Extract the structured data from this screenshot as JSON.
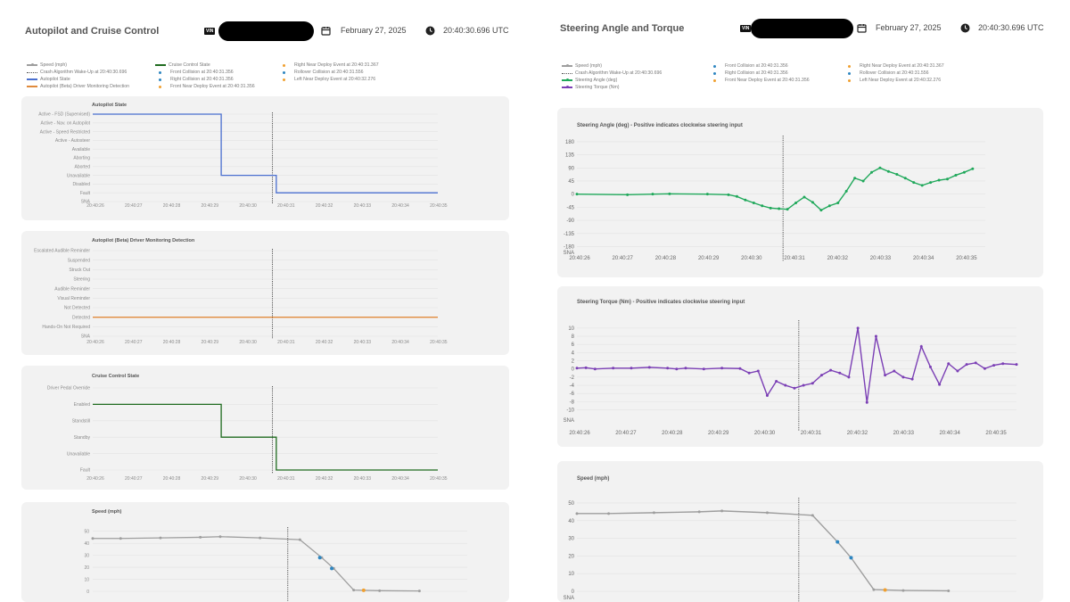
{
  "left": {
    "title": "Autopilot and Cruise Control",
    "vin_label": "VIN",
    "date": "February 27, 2025",
    "time": "20:40:30.696 UTC",
    "legend": [
      {
        "label": "Speed (mph)",
        "color": "#9e9e9e",
        "kind": "line-dot"
      },
      {
        "label": "Crash Algorithm Wake-Up at 20:40:30.696",
        "color": "#555555",
        "kind": "dotted"
      },
      {
        "label": "Autopilot State",
        "color": "#4a6fcf",
        "kind": "line"
      },
      {
        "label": "Autopilot (Beta) Driver Monitoring Detection",
        "color": "#e08a3c",
        "kind": "line"
      },
      {
        "label": "Cruise Control State",
        "color": "#1f6b1f",
        "kind": "line"
      },
      {
        "label": "Front Collision at 20:40:31.356",
        "color": "#2e86c1",
        "kind": "dot"
      },
      {
        "label": "Right Collision at 20:40:31.356",
        "color": "#2e86c1",
        "kind": "dot"
      },
      {
        "label": "Front Near Deploy Event at 20:40:31.356",
        "color": "#f0a030",
        "kind": "dot"
      },
      {
        "label": "Right Near Deploy Event at 20:40:31.367",
        "color": "#f0a030",
        "kind": "dot"
      },
      {
        "label": "Rollover Collision at 20:40:31.556",
        "color": "#2e86c1",
        "kind": "dot"
      },
      {
        "label": "Left Near Deploy Event at 20:40:32.276",
        "color": "#f0a030",
        "kind": "dot"
      }
    ]
  },
  "right": {
    "title": "Steering Angle and Torque",
    "vin_label": "VIN",
    "date": "February 27, 2025",
    "time": "20:40:30.696 UTC",
    "legend": [
      {
        "label": "Speed (mph)",
        "color": "#9e9e9e",
        "kind": "line-dot"
      },
      {
        "label": "Crash Algorithm Wake-Up at 20:40:30.696",
        "color": "#555555",
        "kind": "dotted"
      },
      {
        "label": "Steering Angle (deg)",
        "color": "#1fa85a",
        "kind": "line-dot"
      },
      {
        "label": "Steering Torque (Nm)",
        "color": "#7b3fb5",
        "kind": "line-dot"
      },
      {
        "label": "Front Collision at 20:40:31.356",
        "color": "#2e86c1",
        "kind": "dot"
      },
      {
        "label": "Right Collision at 20:40:31.356",
        "color": "#2e86c1",
        "kind": "dot"
      },
      {
        "label": "Front Near Deploy Event at 20:40:31.356",
        "color": "#f0a030",
        "kind": "dot"
      },
      {
        "label": "Right Near Deploy Event at 20:40:31.367",
        "color": "#f0a030",
        "kind": "dot"
      },
      {
        "label": "Rollover Collision at 20:40:31.556",
        "color": "#2e86c1",
        "kind": "dot"
      },
      {
        "label": "Left Near Deploy Event at 20:40:32.276",
        "color": "#f0a030",
        "kind": "dot"
      }
    ]
  },
  "chart_data": [
    {
      "id": "autopilot-state",
      "type": "line",
      "title": "Autopilot State",
      "categorical_y": true,
      "y_categories": [
        "SNA",
        "Fault",
        "Disabled",
        "Unavailable",
        "Aborted",
        "Aborting",
        "Available",
        "Active - Autosteer",
        "Active - Speed Restricted",
        "Active - Nav. on Autopilot",
        "Active - FSD (Supervised)"
      ],
      "x_ticks": [
        "20:40:26",
        "20:40:27",
        "20:40:28",
        "20:40:29",
        "20:40:30",
        "20:40:31",
        "20:40:32",
        "20:40:33",
        "20:40:34",
        "20:40:35"
      ],
      "x_range": [
        25.8,
        35.2
      ],
      "wakeup": 30.696,
      "series": [
        {
          "color": "#4a6fcf",
          "points": [
            [
              25.8,
              10
            ],
            [
              29.3,
              10
            ],
            [
              29.3,
              3
            ],
            [
              30.8,
              3
            ],
            [
              30.8,
              1
            ],
            [
              35.2,
              1
            ]
          ]
        }
      ]
    },
    {
      "id": "driver-monitoring",
      "type": "line",
      "title": "Autopilot (Beta) Driver Monitoring Detection",
      "categorical_y": true,
      "y_categories": [
        "SNA",
        "Hands-On Not Required",
        "Detected",
        "Not Detected",
        "Visual Reminder",
        "Audible Reminder",
        "Steering",
        "Struck Out",
        "Suspended",
        "Escalated Audible Reminder"
      ],
      "x_ticks": [
        "20:40:26",
        "20:40:27",
        "20:40:28",
        "20:40:29",
        "20:40:30",
        "20:40:31",
        "20:40:32",
        "20:40:33",
        "20:40:34",
        "20:40:35"
      ],
      "x_range": [
        25.8,
        35.2
      ],
      "wakeup": 30.696,
      "series": [
        {
          "color": "#e08a3c",
          "points": [
            [
              25.8,
              2
            ],
            [
              35.2,
              2
            ]
          ]
        }
      ]
    },
    {
      "id": "cruise-control",
      "type": "line",
      "title": "Cruise Control State",
      "categorical_y": true,
      "y_categories": [
        "Fault",
        "Unavailable",
        "Standby",
        "Standstill",
        "Enabled",
        "Driver Pedal Override"
      ],
      "x_ticks": [
        "20:40:26",
        "20:40:27",
        "20:40:28",
        "20:40:29",
        "20:40:30",
        "20:40:31",
        "20:40:32",
        "20:40:33",
        "20:40:34",
        "20:40:35"
      ],
      "x_range": [
        25.8,
        35.2
      ],
      "wakeup": 30.696,
      "series": [
        {
          "color": "#1f6b1f",
          "points": [
            [
              25.8,
              4
            ],
            [
              29.3,
              4
            ],
            [
              29.3,
              2
            ],
            [
              30.8,
              2
            ],
            [
              30.8,
              0
            ],
            [
              35.2,
              0
            ]
          ]
        }
      ]
    },
    {
      "id": "speed-left",
      "type": "line",
      "title": "Speed (mph)",
      "y_ticks": [
        0,
        10,
        20,
        30,
        40,
        50
      ],
      "ylim": [
        0,
        52
      ],
      "x_range": [
        25.8,
        35.2
      ],
      "wakeup": 30.696,
      "series": [
        {
          "color": "#9e9e9e",
          "dots": true,
          "points": [
            [
              25.8,
              44
            ],
            [
              26.5,
              44
            ],
            [
              27.5,
              44.5
            ],
            [
              28.5,
              45
            ],
            [
              29,
              45.5
            ],
            [
              30,
              44.5
            ],
            [
              31,
              43
            ],
            [
              31.55,
              28
            ],
            [
              31.85,
              19
            ],
            [
              32.35,
              1
            ],
            [
              33.0,
              0.5
            ],
            [
              34.0,
              0.3
            ]
          ]
        }
      ],
      "events": [
        {
          "x": 31.5,
          "y": 28,
          "color": "#2e86c1"
        },
        {
          "x": 31.8,
          "y": 19,
          "color": "#2e86c1"
        },
        {
          "x": 32.6,
          "y": 0.8,
          "color": "#f0a030"
        }
      ]
    },
    {
      "id": "steering-angle",
      "type": "line",
      "title": "Steering Angle (deg) - Positive indicates clockwise steering input",
      "y_ticks": [
        180,
        135,
        90,
        45,
        0,
        -45,
        -90,
        -135,
        -180
      ],
      "y_tick_labels": [
        "180",
        "135",
        "90",
        "45",
        "0",
        "-45",
        "-90",
        "-135",
        "-180"
      ],
      "sna_label": "SNA",
      "ylim": [
        -200,
        195
      ],
      "x_ticks": [
        "20:40:26",
        "20:40:27",
        "20:40:28",
        "20:40:29",
        "20:40:30",
        "20:40:31",
        "20:40:32",
        "20:40:33",
        "20:40:34",
        "20:40:35"
      ],
      "x_range": [
        25.8,
        35.5
      ],
      "wakeup": 30.696,
      "series": [
        {
          "color": "#1fa85a",
          "dots": true,
          "points": [
            [
              25.8,
              0
            ],
            [
              27.0,
              -2
            ],
            [
              27.6,
              0
            ],
            [
              28.0,
              1
            ],
            [
              28.9,
              0
            ],
            [
              29.4,
              -2
            ],
            [
              29.6,
              -8
            ],
            [
              29.8,
              -20
            ],
            [
              30.0,
              -30
            ],
            [
              30.2,
              -40
            ],
            [
              30.4,
              -48
            ],
            [
              30.6,
              -50
            ],
            [
              30.8,
              -52
            ],
            [
              31.0,
              -30
            ],
            [
              31.2,
              -10
            ],
            [
              31.4,
              -28
            ],
            [
              31.6,
              -55
            ],
            [
              31.8,
              -40
            ],
            [
              32.0,
              -30
            ],
            [
              32.2,
              10
            ],
            [
              32.4,
              55
            ],
            [
              32.6,
              45
            ],
            [
              32.8,
              75
            ],
            [
              33.0,
              90
            ],
            [
              33.2,
              78
            ],
            [
              33.4,
              68
            ],
            [
              33.6,
              55
            ],
            [
              33.8,
              40
            ],
            [
              34.0,
              30
            ],
            [
              34.2,
              40
            ],
            [
              34.4,
              48
            ],
            [
              34.6,
              52
            ],
            [
              34.8,
              65
            ],
            [
              35.0,
              75
            ],
            [
              35.2,
              87
            ]
          ]
        }
      ]
    },
    {
      "id": "steering-torque",
      "type": "line",
      "title": "Steering Torque (Nm) - Positive indicates clockwise steering input",
      "y_ticks": [
        10,
        8,
        6,
        4,
        2,
        0,
        -2,
        -4,
        -6,
        -8,
        -10
      ],
      "y_tick_labels": [
        "10",
        "8",
        "6",
        "4",
        "2",
        "0",
        "-2",
        "-4",
        "-6",
        "-8",
        "-10"
      ],
      "sna_label": "SNA",
      "ylim": [
        -12.5,
        11.5
      ],
      "x_ticks": [
        "20:40:26",
        "20:40:27",
        "20:40:28",
        "20:40:29",
        "20:40:30",
        "20:40:31",
        "20:40:32",
        "20:40:33",
        "20:40:34",
        "20:40:35"
      ],
      "x_range": [
        25.8,
        35.5
      ],
      "wakeup": 30.696,
      "series": [
        {
          "color": "#7b3fb5",
          "dots": true,
          "points": [
            [
              25.8,
              0.2
            ],
            [
              26.0,
              0.3
            ],
            [
              26.2,
              0
            ],
            [
              26.6,
              0.2
            ],
            [
              27.0,
              0.2
            ],
            [
              27.4,
              0.4
            ],
            [
              27.8,
              0.2
            ],
            [
              28.0,
              0
            ],
            [
              28.2,
              0.2
            ],
            [
              28.6,
              0
            ],
            [
              29.0,
              0.2
            ],
            [
              29.4,
              0.1
            ],
            [
              29.6,
              -1
            ],
            [
              29.8,
              -0.5
            ],
            [
              30.0,
              -6.5
            ],
            [
              30.2,
              -3
            ],
            [
              30.4,
              -4
            ],
            [
              30.6,
              -4.7
            ],
            [
              30.8,
              -4
            ],
            [
              31.0,
              -3.5
            ],
            [
              31.2,
              -1.5
            ],
            [
              31.4,
              -0.3
            ],
            [
              31.6,
              -1
            ],
            [
              31.8,
              -2
            ],
            [
              32.0,
              10
            ],
            [
              32.2,
              -8.2
            ],
            [
              32.4,
              8
            ],
            [
              32.6,
              -1.5
            ],
            [
              32.8,
              -0.5
            ],
            [
              33.0,
              -2
            ],
            [
              33.2,
              -2.5
            ],
            [
              33.4,
              5.5
            ],
            [
              33.6,
              0.5
            ],
            [
              33.8,
              -3.8
            ],
            [
              34.0,
              1.3
            ],
            [
              34.2,
              -0.5
            ],
            [
              34.4,
              1.1
            ],
            [
              34.6,
              1.5
            ],
            [
              34.8,
              0.1
            ],
            [
              35.0,
              0.9
            ],
            [
              35.2,
              1.3
            ],
            [
              35.5,
              1.1
            ]
          ]
        }
      ]
    },
    {
      "id": "speed-right",
      "type": "line",
      "title": "Speed (mph)",
      "y_ticks": [
        50,
        40,
        30,
        20,
        10,
        0
      ],
      "y_tick_labels": [
        "50",
        "40",
        "30",
        "20",
        "10",
        "0"
      ],
      "sna_label": "SNA",
      "ylim": [
        -3,
        52
      ],
      "x_range": [
        25.8,
        35.5
      ],
      "wakeup": 30.696,
      "series": [
        {
          "color": "#9e9e9e",
          "dots": true,
          "points": [
            [
              25.8,
              44
            ],
            [
              26.5,
              44
            ],
            [
              27.5,
              44.5
            ],
            [
              28.5,
              45
            ],
            [
              29,
              45.5
            ],
            [
              30,
              44.5
            ],
            [
              31,
              43
            ],
            [
              31.55,
              28
            ],
            [
              31.85,
              19
            ],
            [
              32.35,
              1
            ],
            [
              33.0,
              0.5
            ],
            [
              34.0,
              0.3
            ]
          ]
        }
      ],
      "events": [
        {
          "x": 31.55,
          "y": 28,
          "color": "#2e86c1"
        },
        {
          "x": 31.85,
          "y": 19,
          "color": "#2e86c1"
        },
        {
          "x": 32.6,
          "y": 0.8,
          "color": "#f0a030"
        }
      ]
    }
  ]
}
